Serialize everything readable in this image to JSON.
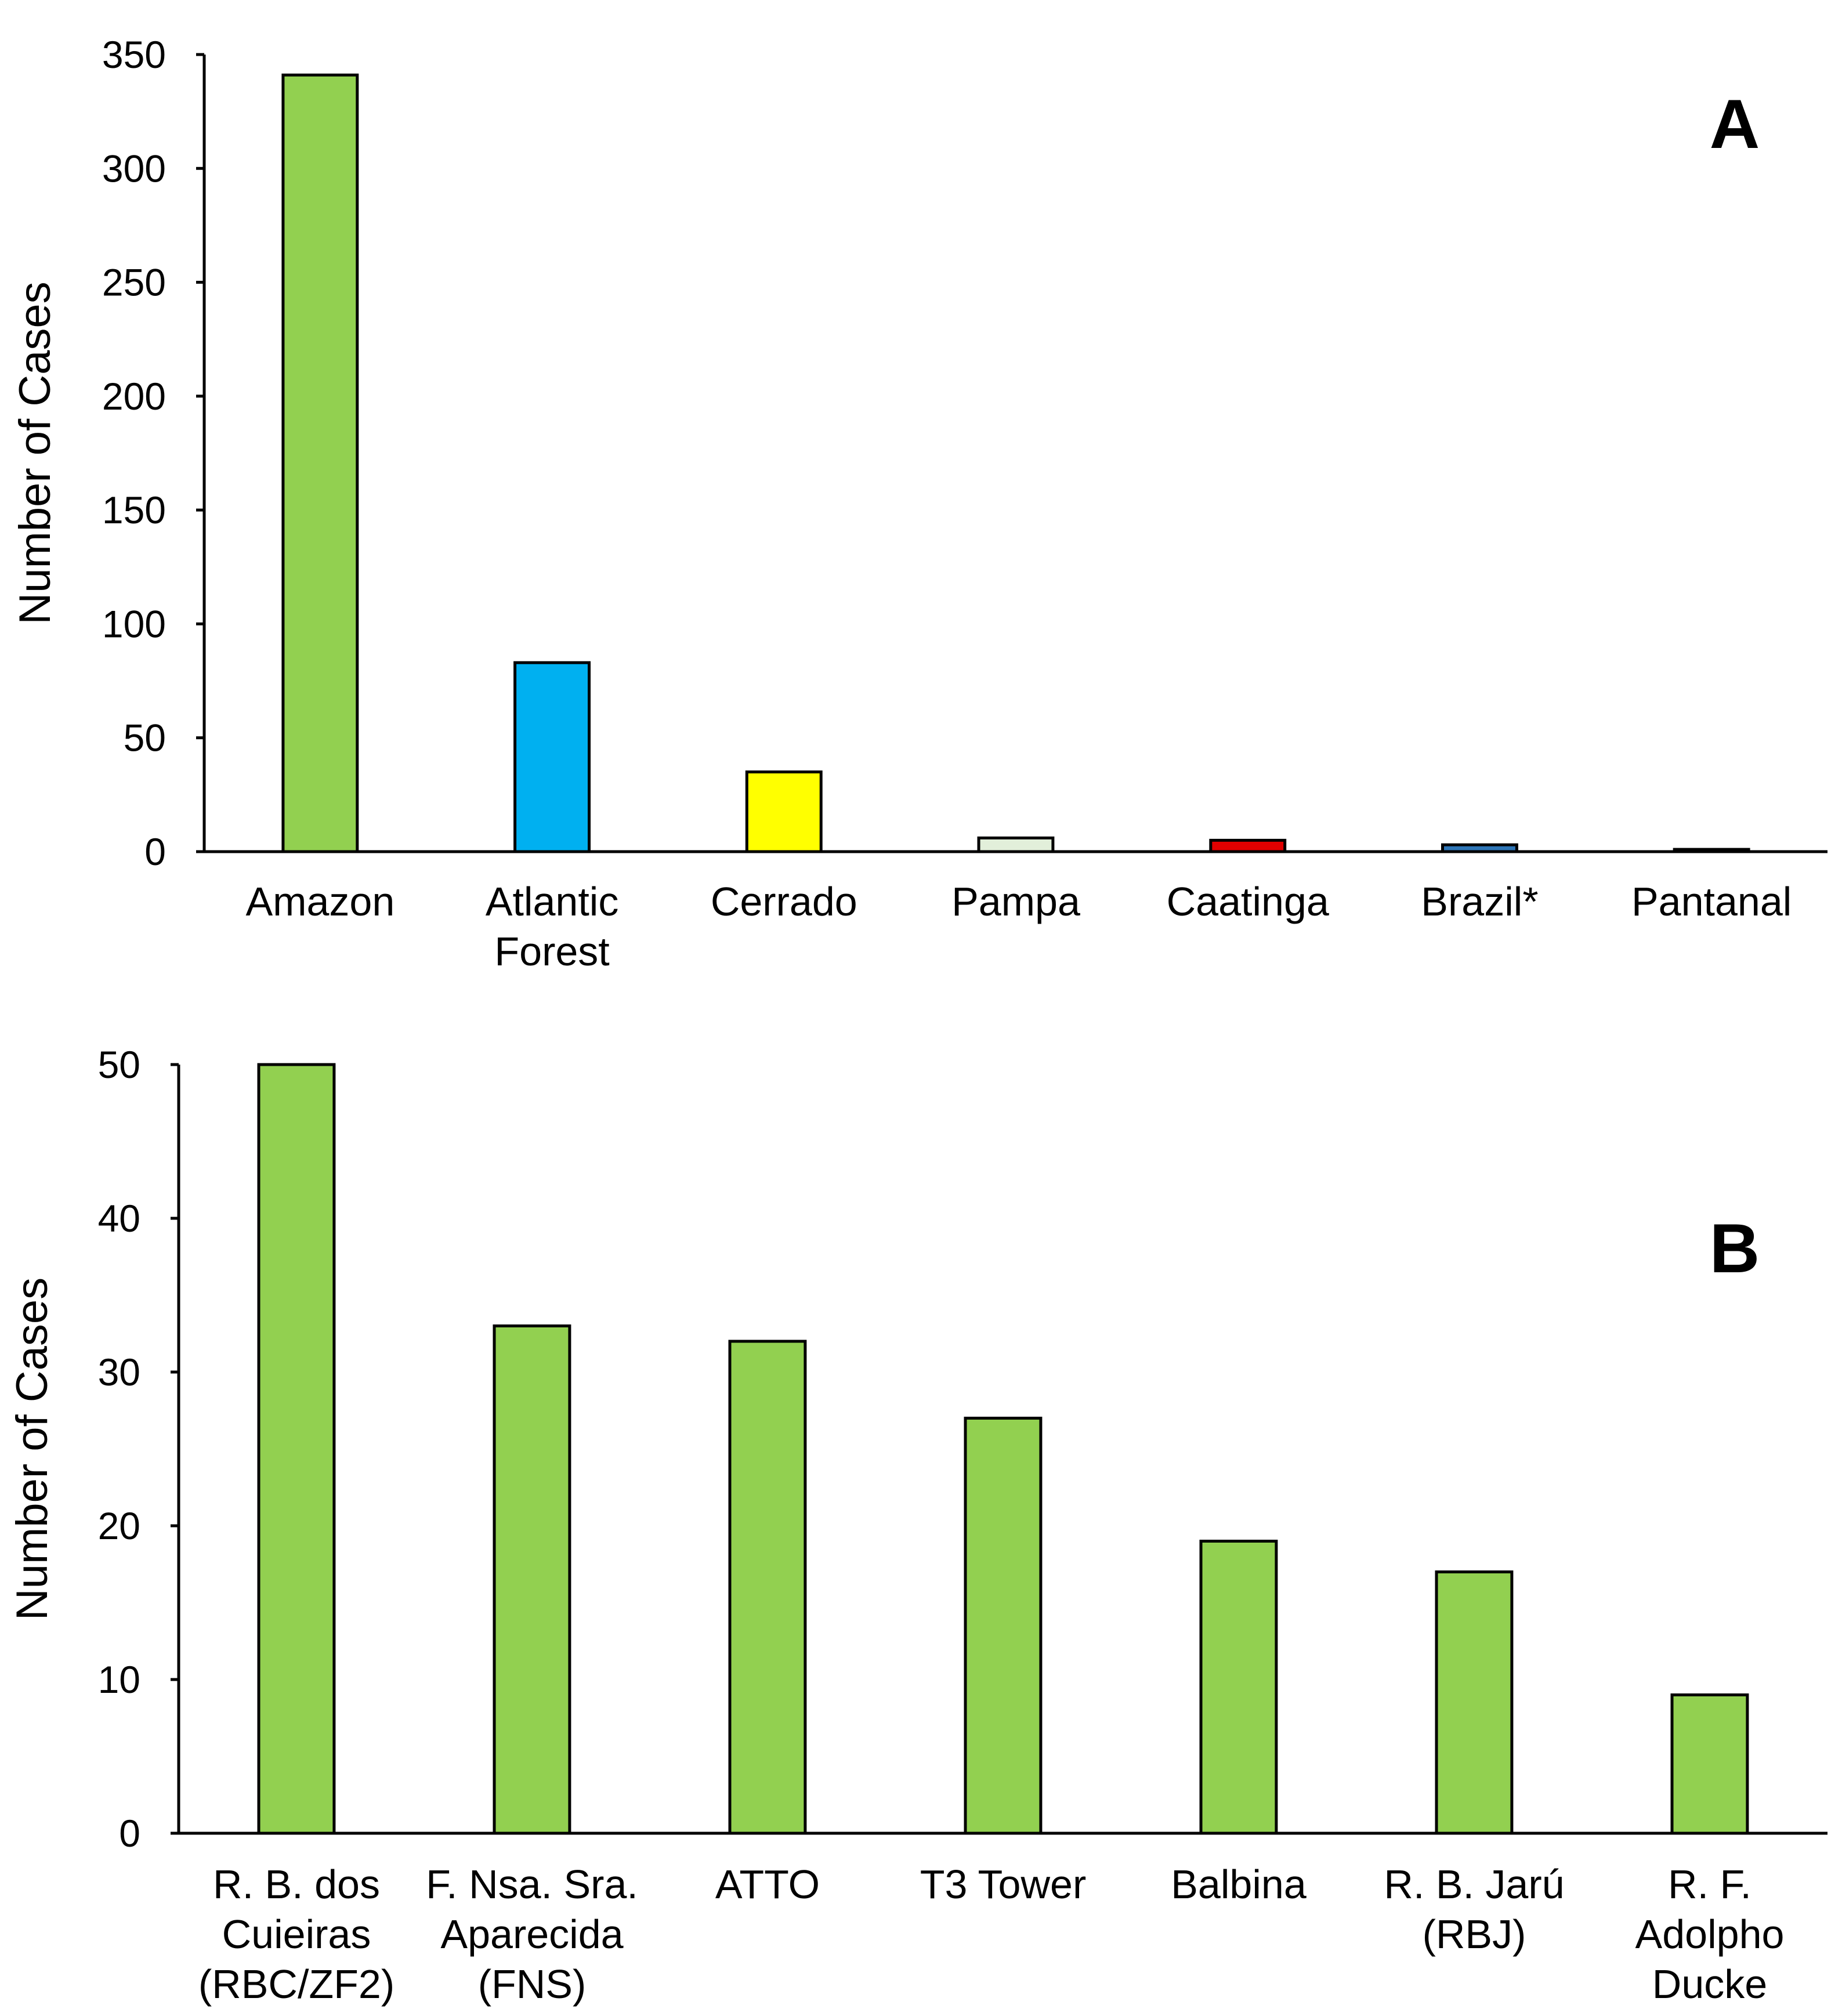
{
  "chart_data": [
    {
      "type": "bar",
      "panel_label": "A",
      "ylabel": "Number of Cases",
      "xlabel": "",
      "ylim": [
        0,
        350
      ],
      "yticks": [
        0,
        50,
        100,
        150,
        200,
        250,
        300,
        350
      ],
      "grid": false,
      "categories": [
        [
          "Amazon"
        ],
        [
          "Atlantic",
          "Forest"
        ],
        [
          "Cerrado"
        ],
        [
          "Pampa"
        ],
        [
          "Caatinga"
        ],
        [
          "Brazil*"
        ],
        [
          "Pantanal"
        ]
      ],
      "values": [
        341,
        83,
        35,
        6,
        5,
        3,
        1
      ],
      "colors": [
        "#92d050",
        "#00b0f0",
        "#ffff00",
        "#e2efda",
        "#e00000",
        "#2e75b6",
        "#404040"
      ]
    },
    {
      "type": "bar",
      "panel_label": "B",
      "ylabel": "Number of Cases",
      "xlabel": "",
      "ylim": [
        0,
        50
      ],
      "yticks": [
        0,
        10,
        20,
        30,
        40,
        50
      ],
      "grid": false,
      "categories": [
        [
          "R. B. dos",
          "Cuieiras",
          "(RBC/ZF2)"
        ],
        [
          "F. Nsa. Sra.",
          "Aparecida",
          "(FNS)"
        ],
        [
          "ATTO"
        ],
        [
          "T3 Tower"
        ],
        [
          "Balbina"
        ],
        [
          "R. B. Jarú",
          "(RBJ)"
        ],
        [
          "R. F.",
          "Adolpho",
          "Ducke"
        ]
      ],
      "values": [
        50,
        33,
        32,
        27,
        19,
        17,
        9
      ],
      "colors": [
        "#92d050",
        "#92d050",
        "#92d050",
        "#92d050",
        "#92d050",
        "#92d050",
        "#92d050"
      ]
    }
  ]
}
